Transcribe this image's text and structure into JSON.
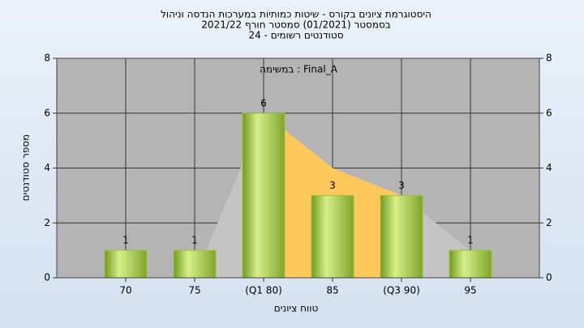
{
  "chart_data": {
    "type": "bar",
    "title": [
      "היסטוגרמת ציונים בקורס - שיטות כמותיות במערכות הנדסה וניהול",
      "בסמסטר  (01/2021)  סמסטר חורף 2021/22",
      "סטודנטים רשומים - 24"
    ],
    "annotation": "במשימה : Final_A",
    "x_label": "טווח ציונים",
    "y_label": "מספר סטודנטים",
    "categories": [
      "70",
      "75",
      "(Q1 80)",
      "85",
      "(Q3 90)",
      "95"
    ],
    "values": [
      1,
      1,
      6,
      3,
      3,
      1
    ],
    "color": "#9cc43c",
    "area": {
      "values": [
        0,
        0,
        6,
        4,
        3,
        1
      ],
      "color": "#c4c4c4",
      "highlight_color": "#ffc85a",
      "highlight_range": [
        2,
        4
      ]
    },
    "ylim": [
      0,
      8
    ],
    "yticks": [
      0,
      2,
      4,
      6,
      8
    ],
    "y2lim": [
      0,
      8
    ],
    "y2ticks": [
      0,
      2,
      4,
      6,
      8
    ],
    "grid": true
  }
}
